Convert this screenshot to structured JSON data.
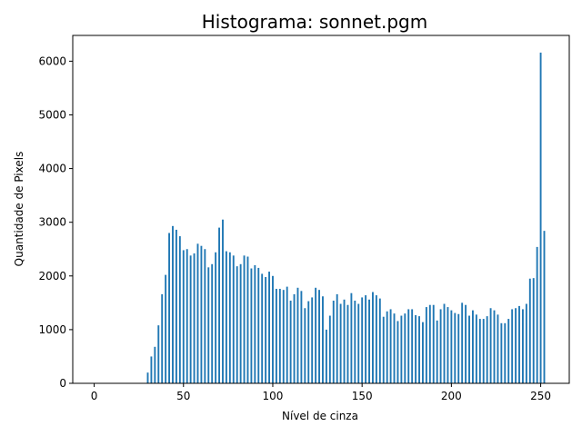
{
  "chart_data": {
    "type": "bar",
    "title": "Histograma: sonnet.pgm",
    "xlabel": "Nível de cinza",
    "ylabel": "Quantidade de Pixels",
    "xlim": [
      -12,
      266
    ],
    "ylim": [
      0,
      6480
    ],
    "xticks": [
      0,
      50,
      100,
      150,
      200,
      250
    ],
    "yticks": [
      0,
      1000,
      2000,
      3000,
      4000,
      5000,
      6000
    ],
    "xtick_labels": [
      "0",
      "50",
      "100",
      "150",
      "200",
      "250"
    ],
    "ytick_labels": [
      "0",
      "1000",
      "2000",
      "3000",
      "4000",
      "5000",
      "6000"
    ],
    "grid": false,
    "bar_color": "#1f77b4",
    "x": [
      30,
      32,
      34,
      36,
      38,
      40,
      42,
      44,
      46,
      48,
      50,
      52,
      54,
      56,
      58,
      60,
      62,
      64,
      66,
      68,
      70,
      72,
      74,
      76,
      78,
      80,
      82,
      84,
      86,
      88,
      90,
      92,
      94,
      96,
      98,
      100,
      102,
      104,
      106,
      108,
      110,
      112,
      114,
      116,
      118,
      120,
      122,
      124,
      126,
      128,
      130,
      132,
      134,
      136,
      138,
      140,
      142,
      144,
      146,
      148,
      150,
      152,
      154,
      156,
      158,
      160,
      162,
      164,
      166,
      168,
      170,
      172,
      174,
      176,
      178,
      180,
      182,
      184,
      186,
      188,
      190,
      192,
      194,
      196,
      198,
      200,
      202,
      204,
      206,
      208,
      210,
      212,
      214,
      216,
      218,
      220,
      222,
      224,
      226,
      228,
      230,
      232,
      234,
      236,
      238,
      240,
      242,
      244,
      246,
      248,
      250,
      252
    ],
    "values": [
      200,
      500,
      680,
      1080,
      1660,
      2020,
      2800,
      2930,
      2860,
      2740,
      2480,
      2500,
      2380,
      2420,
      2600,
      2560,
      2500,
      2160,
      2220,
      2440,
      2900,
      3050,
      2460,
      2440,
      2380,
      2180,
      2220,
      2380,
      2360,
      2140,
      2200,
      2150,
      2040,
      1980,
      2080,
      2000,
      1760,
      1760,
      1740,
      1800,
      1540,
      1660,
      1780,
      1720,
      1400,
      1530,
      1600,
      1780,
      1740,
      1620,
      1000,
      1260,
      1540,
      1660,
      1480,
      1560,
      1460,
      1680,
      1540,
      1480,
      1600,
      1640,
      1560,
      1700,
      1640,
      1580,
      1240,
      1340,
      1380,
      1300,
      1160,
      1260,
      1300,
      1380,
      1380,
      1270,
      1250,
      1140,
      1420,
      1460,
      1460,
      1170,
      1380,
      1480,
      1420,
      1360,
      1310,
      1290,
      1500,
      1460,
      1260,
      1360,
      1280,
      1200,
      1200,
      1250,
      1400,
      1360,
      1280,
      1120,
      1120,
      1200,
      1380,
      1400,
      1440,
      1380,
      1480,
      1950,
      1960,
      2540,
      6160,
      2840
    ]
  }
}
